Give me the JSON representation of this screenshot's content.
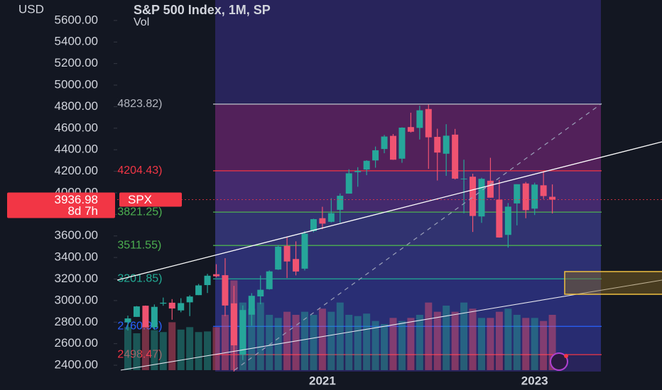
{
  "chart_data": {
    "type": "candlestick",
    "title": "S&P 500 Index, 1M, SP",
    "currency": "USD",
    "volume_label": "Vol",
    "symbol_tag": "SPX",
    "countdown": "8d 7h",
    "last_price": 3936.98,
    "up_color": "#26a69a",
    "down_color": "#ef5371",
    "categories": [
      null,
      null,
      null,
      null,
      null,
      null,
      null,
      null,
      null,
      null,
      null,
      null,
      null,
      null,
      null,
      null,
      null,
      null,
      null,
      null,
      null,
      null,
      "2021",
      null,
      null,
      null,
      null,
      null,
      null,
      null,
      null,
      null,
      null,
      null,
      null,
      null,
      null,
      null,
      null,
      null,
      null,
      null,
      null,
      null,
      null,
      null,
      "2023",
      null,
      null
    ],
    "open": [
      2798.22,
      2848.63,
      2952.33,
      2751.53,
      2971.41,
      2980.32,
      2909.01,
      2983.69,
      3050.72,
      3143.85,
      3244.67,
      3235.66,
      2974.28,
      2498.08,
      2869.09,
      3038.78,
      3105.92,
      3288.26,
      3507.44,
      3385.87,
      3296.2,
      3645.87,
      3764.61,
      3731.17,
      3842.51,
      3992.78,
      4191.98,
      4216.52,
      4300.73,
      4406.86,
      4528.8,
      4317.16,
      4610.62,
      4602.82,
      4778.14,
      4519.57,
      4363.14,
      4540.32,
      4130.61,
      4149.78,
      3781.0,
      4112.38,
      3936.73,
      3609.78,
      3901.79,
      4087.14,
      3853.29,
      4070.07,
      3963.34
    ],
    "high": [
      2860.31,
      2949.52,
      2954.13,
      2964.15,
      3027.98,
      3013.59,
      3021.99,
      3050.1,
      3154.26,
      3247.93,
      3337.77,
      3393.52,
      3136.72,
      2954.86,
      3068.67,
      3233.13,
      3279.99,
      3514.77,
      3588.11,
      3549.85,
      3645.99,
      3760.2,
      3870.9,
      3950.43,
      3994.41,
      4218.78,
      4238.04,
      4302.43,
      4429.97,
      4537.36,
      4545.85,
      4608.08,
      4743.83,
      4808.93,
      4818.62,
      4595.31,
      4637.3,
      4593.45,
      4307.66,
      4177.51,
      4140.15,
      4325.28,
      4119.28,
      3905.42,
      4080.11,
      4100.96,
      4094.21,
      4195.44,
      4078.49
    ],
    "low": [
      2722.27,
      2848.63,
      2750.52,
      2728.81,
      2952.22,
      2822.12,
      2891.85,
      2855.94,
      3050.72,
      3070.33,
      3214.64,
      2855.84,
      2191.86,
      2447.49,
      2766.64,
      2965.66,
      3101.17,
      3284.53,
      3209.45,
      3233.94,
      3279.74,
      3633.4,
      3662.71,
      3725.62,
      3723.34,
      3992.78,
      4056.88,
      4164.4,
      4233.13,
      4367.73,
      4305.91,
      4278.94,
      4560.0,
      4495.12,
      4222.62,
      4114.65,
      4157.87,
      4124.28,
      3810.32,
      3636.87,
      3721.56,
      3954.53,
      3584.13,
      3491.58,
      3698.15,
      3764.49,
      3794.33,
      3943.08,
      3808.86
    ],
    "close": [
      2834.4,
      2945.83,
      2752.06,
      2941.76,
      2980.38,
      2926.46,
      2976.74,
      3037.56,
      3140.98,
      3230.78,
      3225.52,
      2954.22,
      2584.59,
      2912.43,
      3044.31,
      3100.29,
      3271.12,
      3500.31,
      3363.0,
      3269.96,
      3621.63,
      3756.07,
      3714.24,
      3811.15,
      3972.89,
      4181.17,
      4204.11,
      4297.5,
      4395.26,
      4522.68,
      4307.54,
      4605.38,
      4567.0,
      4766.18,
      4515.55,
      4373.94,
      4530.41,
      4131.93,
      4132.15,
      3785.38,
      4130.29,
      3955.0,
      3585.62,
      3871.98,
      4080.11,
      3839.5,
      4076.6,
      3970.15,
      3936.98
    ],
    "volume": [
      70,
      60,
      72,
      65,
      62,
      78,
      66,
      70,
      62,
      63,
      70,
      90,
      146,
      110,
      100,
      110,
      90,
      85,
      95,
      90,
      95,
      90,
      100,
      95,
      110,
      90,
      88,
      92,
      80,
      75,
      85,
      80,
      85,
      90,
      110,
      95,
      105,
      95,
      110,
      100,
      85,
      85,
      95,
      100,
      90,
      85,
      85,
      80,
      90
    ],
    "ylim": [
      2170,
      5790
    ],
    "yticks": [
      {
        "value": 2400,
        "label": "2400.00"
      },
      {
        "value": 2600,
        "label": "2600.00"
      },
      {
        "value": 2800,
        "label": "2800.00"
      },
      {
        "value": 3000,
        "label": "3000.00"
      },
      {
        "value": 3200,
        "label": "3200.00"
      },
      {
        "value": 3400,
        "label": "3400.00"
      },
      {
        "value": 3600,
        "label": "3600.00"
      },
      {
        "value": 3800,
        "label": "3800.00"
      },
      {
        "value": 4000,
        "label": "4000.00"
      },
      {
        "value": 4200,
        "label": "4200.00"
      },
      {
        "value": 4400,
        "label": "4400.00"
      },
      {
        "value": 4600,
        "label": "4600.00"
      },
      {
        "value": 4800,
        "label": "4800.00"
      },
      {
        "value": 5000,
        "label": "5000.00"
      },
      {
        "value": 5200,
        "label": "5200.00"
      },
      {
        "value": 5400,
        "label": "5400.00"
      },
      {
        "value": 5600,
        "label": "5600.00"
      }
    ],
    "fib_levels": [
      {
        "value": 4823.82,
        "label": "(4823.82)"
      },
      {
        "value": 4204.43,
        "label": "(4204.43)"
      },
      {
        "value": 3821.25,
        "label": "(3821.25)"
      },
      {
        "value": 3511.55,
        "label": "(3511.55)"
      },
      {
        "value": 3201.85,
        "label": "(3201.85)"
      },
      {
        "value": 2760.93,
        "label": "(2760.93)"
      },
      {
        "value": 2498.47,
        "label": "(2498.47)"
      }
    ],
    "fib_colors": [
      "#b2b5be",
      "#f23645",
      "#4caf50",
      "#4caf50",
      "#22ab94",
      "#2962ff",
      "#f23645"
    ]
  }
}
